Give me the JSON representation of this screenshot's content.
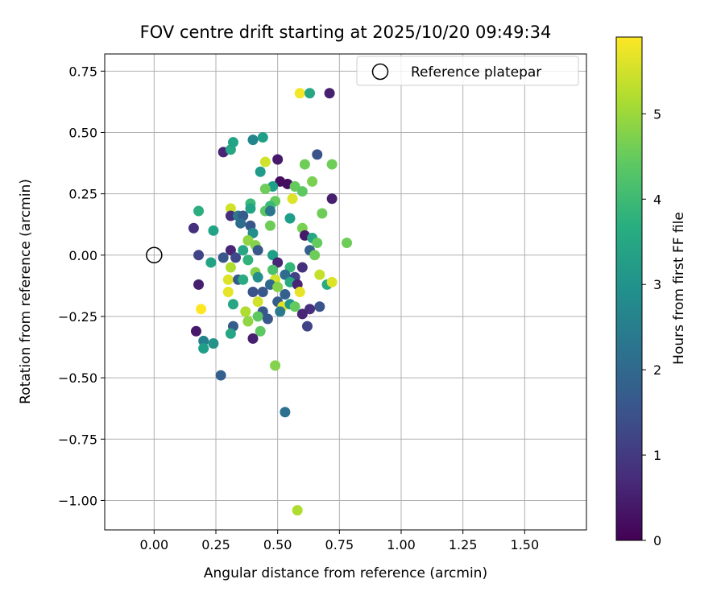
{
  "chart_data": {
    "type": "scatter",
    "title": "FOV centre drift starting at 2025/10/20 09:49:34",
    "xlabel": "Angular distance from reference (arcmin)",
    "ylabel": "Rotation from reference (arcmin)",
    "xlim": [
      -0.2,
      1.75
    ],
    "ylim": [
      -1.12,
      0.82
    ],
    "x_ticks": [
      0.0,
      0.25,
      0.5,
      0.75,
      1.0,
      1.25,
      1.5
    ],
    "x_tick_labels": [
      "0.00",
      "0.25",
      "0.50",
      "0.75",
      "1.00",
      "1.25",
      "1.50"
    ],
    "y_ticks": [
      0.75,
      0.5,
      0.25,
      0.0,
      -0.25,
      -0.5,
      -0.75,
      -1.0
    ],
    "y_tick_labels": [
      "0.75",
      "0.50",
      "0.25",
      "0.00",
      "−0.25",
      "−0.50",
      "−0.75",
      "−1.00"
    ],
    "grid": true,
    "legend": {
      "position": "top-right",
      "entries": [
        "Reference platepar"
      ]
    },
    "colorbar": {
      "label": "Hours from first FF file",
      "range": [
        0,
        5.9
      ],
      "ticks": [
        0,
        1,
        2,
        3,
        4,
        5
      ],
      "tick_labels": [
        "0",
        "1",
        "2",
        "3",
        "4",
        "5"
      ],
      "colormap": "viridis"
    },
    "reference_point": {
      "x": 0.0,
      "y": 0.0
    },
    "points": [
      {
        "x": 0.59,
        "y": 0.66,
        "h": 5.8
      },
      {
        "x": 0.63,
        "y": 0.66,
        "h": 3.5
      },
      {
        "x": 0.71,
        "y": 0.66,
        "h": 0.5
      },
      {
        "x": 0.28,
        "y": 0.42,
        "h": 0.6
      },
      {
        "x": 0.31,
        "y": 0.43,
        "h": 3.5
      },
      {
        "x": 0.32,
        "y": 0.46,
        "h": 3.4
      },
      {
        "x": 0.4,
        "y": 0.47,
        "h": 2.7
      },
      {
        "x": 0.44,
        "y": 0.48,
        "h": 3.3
      },
      {
        "x": 0.45,
        "y": 0.38,
        "h": 5.5
      },
      {
        "x": 0.5,
        "y": 0.39,
        "h": 0.4
      },
      {
        "x": 0.66,
        "y": 0.41,
        "h": 1.5
      },
      {
        "x": 0.61,
        "y": 0.37,
        "h": 4.6
      },
      {
        "x": 0.72,
        "y": 0.37,
        "h": 4.6
      },
      {
        "x": 0.43,
        "y": 0.34,
        "h": 3.2
      },
      {
        "x": 0.51,
        "y": 0.3,
        "h": 0.2
      },
      {
        "x": 0.54,
        "y": 0.29,
        "h": 0.2
      },
      {
        "x": 0.48,
        "y": 0.28,
        "h": 3.3
      },
      {
        "x": 0.57,
        "y": 0.28,
        "h": 4.5
      },
      {
        "x": 0.64,
        "y": 0.3,
        "h": 4.7
      },
      {
        "x": 0.45,
        "y": 0.27,
        "h": 4.6
      },
      {
        "x": 0.6,
        "y": 0.26,
        "h": 4.4
      },
      {
        "x": 0.72,
        "y": 0.23,
        "h": 0.5
      },
      {
        "x": 0.56,
        "y": 0.23,
        "h": 5.6
      },
      {
        "x": 0.49,
        "y": 0.22,
        "h": 4.5
      },
      {
        "x": 0.47,
        "y": 0.2,
        "h": 4.0
      },
      {
        "x": 0.39,
        "y": 0.21,
        "h": 4.0
      },
      {
        "x": 0.31,
        "y": 0.19,
        "h": 5.5
      },
      {
        "x": 0.18,
        "y": 0.18,
        "h": 3.7
      },
      {
        "x": 0.39,
        "y": 0.19,
        "h": 3.4
      },
      {
        "x": 0.45,
        "y": 0.18,
        "h": 4.4
      },
      {
        "x": 0.47,
        "y": 0.18,
        "h": 2.3
      },
      {
        "x": 0.68,
        "y": 0.17,
        "h": 4.6
      },
      {
        "x": 0.31,
        "y": 0.16,
        "h": 0.8
      },
      {
        "x": 0.34,
        "y": 0.16,
        "h": 2.4
      },
      {
        "x": 0.36,
        "y": 0.16,
        "h": 1.7
      },
      {
        "x": 0.55,
        "y": 0.15,
        "h": 3.3
      },
      {
        "x": 0.35,
        "y": 0.13,
        "h": 2.1
      },
      {
        "x": 0.39,
        "y": 0.12,
        "h": 1.6
      },
      {
        "x": 0.16,
        "y": 0.11,
        "h": 0.8
      },
      {
        "x": 0.47,
        "y": 0.12,
        "h": 4.6
      },
      {
        "x": 0.6,
        "y": 0.11,
        "h": 4.7
      },
      {
        "x": 0.24,
        "y": 0.1,
        "h": 3.4
      },
      {
        "x": 0.4,
        "y": 0.09,
        "h": 2.9
      },
      {
        "x": 0.61,
        "y": 0.08,
        "h": 0.4
      },
      {
        "x": 0.64,
        "y": 0.07,
        "h": 3.5
      },
      {
        "x": 0.38,
        "y": 0.06,
        "h": 4.9
      },
      {
        "x": 0.66,
        "y": 0.05,
        "h": 4.5
      },
      {
        "x": 0.78,
        "y": 0.05,
        "h": 4.6
      },
      {
        "x": 0.41,
        "y": 0.04,
        "h": 4.8
      },
      {
        "x": 0.63,
        "y": 0.02,
        "h": 1.8
      },
      {
        "x": 0.31,
        "y": 0.02,
        "h": 0.6
      },
      {
        "x": 0.36,
        "y": 0.02,
        "h": 3.5
      },
      {
        "x": 0.42,
        "y": 0.02,
        "h": 1.6
      },
      {
        "x": 0.65,
        "y": 0.0,
        "h": 4.6
      },
      {
        "x": 0.48,
        "y": 0.0,
        "h": 3.3
      },
      {
        "x": 0.18,
        "y": 0.0,
        "h": 1.2
      },
      {
        "x": 0.28,
        "y": -0.01,
        "h": 1.6
      },
      {
        "x": 0.33,
        "y": -0.01,
        "h": 1.3
      },
      {
        "x": 0.38,
        "y": -0.02,
        "h": 3.8
      },
      {
        "x": 0.23,
        "y": -0.03,
        "h": 3.4
      },
      {
        "x": 0.5,
        "y": -0.03,
        "h": 0.6
      },
      {
        "x": 0.31,
        "y": -0.05,
        "h": 5.2
      },
      {
        "x": 0.55,
        "y": -0.05,
        "h": 3.9
      },
      {
        "x": 0.6,
        "y": -0.05,
        "h": 0.8
      },
      {
        "x": 0.48,
        "y": -0.06,
        "h": 4.2
      },
      {
        "x": 0.41,
        "y": -0.07,
        "h": 4.8
      },
      {
        "x": 0.53,
        "y": -0.08,
        "h": 2.1
      },
      {
        "x": 0.42,
        "y": -0.09,
        "h": 2.9
      },
      {
        "x": 0.57,
        "y": -0.09,
        "h": 1.2
      },
      {
        "x": 0.67,
        "y": -0.08,
        "h": 5.4
      },
      {
        "x": 0.3,
        "y": -0.1,
        "h": 5.6
      },
      {
        "x": 0.34,
        "y": -0.1,
        "h": 1.6
      },
      {
        "x": 0.36,
        "y": -0.1,
        "h": 3.6
      },
      {
        "x": 0.49,
        "y": -0.1,
        "h": 5.5
      },
      {
        "x": 0.7,
        "y": -0.12,
        "h": 3.6
      },
      {
        "x": 0.72,
        "y": -0.11,
        "h": 5.6
      },
      {
        "x": 0.18,
        "y": -0.12,
        "h": 0.5
      },
      {
        "x": 0.47,
        "y": -0.12,
        "h": 2.0
      },
      {
        "x": 0.5,
        "y": -0.13,
        "h": 4.8
      },
      {
        "x": 0.55,
        "y": -0.11,
        "h": 3.6
      },
      {
        "x": 0.58,
        "y": -0.12,
        "h": 0.6
      },
      {
        "x": 0.59,
        "y": -0.15,
        "h": 5.7
      },
      {
        "x": 0.3,
        "y": -0.15,
        "h": 5.7
      },
      {
        "x": 0.4,
        "y": -0.15,
        "h": 1.5
      },
      {
        "x": 0.44,
        "y": -0.15,
        "h": 1.6
      },
      {
        "x": 0.53,
        "y": -0.16,
        "h": 1.8
      },
      {
        "x": 0.42,
        "y": -0.19,
        "h": 5.5
      },
      {
        "x": 0.5,
        "y": -0.19,
        "h": 1.7
      },
      {
        "x": 0.32,
        "y": -0.2,
        "h": 3.5
      },
      {
        "x": 0.52,
        "y": -0.21,
        "h": 5.6
      },
      {
        "x": 0.55,
        "y": -0.2,
        "h": 3.1
      },
      {
        "x": 0.57,
        "y": -0.21,
        "h": 4.5
      },
      {
        "x": 0.63,
        "y": -0.22,
        "h": 0.8
      },
      {
        "x": 0.67,
        "y": -0.21,
        "h": 1.5
      },
      {
        "x": 0.19,
        "y": -0.22,
        "h": 5.9
      },
      {
        "x": 0.37,
        "y": -0.23,
        "h": 5.2
      },
      {
        "x": 0.44,
        "y": -0.23,
        "h": 1.6
      },
      {
        "x": 0.51,
        "y": -0.23,
        "h": 2.4
      },
      {
        "x": 0.6,
        "y": -0.24,
        "h": 0.6
      },
      {
        "x": 0.42,
        "y": -0.25,
        "h": 4.4
      },
      {
        "x": 0.46,
        "y": -0.26,
        "h": 1.6
      },
      {
        "x": 0.38,
        "y": -0.27,
        "h": 4.9
      },
      {
        "x": 0.32,
        "y": -0.29,
        "h": 1.7
      },
      {
        "x": 0.62,
        "y": -0.29,
        "h": 1.2
      },
      {
        "x": 0.43,
        "y": -0.31,
        "h": 4.4
      },
      {
        "x": 0.17,
        "y": -0.31,
        "h": 0.4
      },
      {
        "x": 0.31,
        "y": -0.32,
        "h": 3.5
      },
      {
        "x": 0.2,
        "y": -0.35,
        "h": 2.6
      },
      {
        "x": 0.4,
        "y": -0.34,
        "h": 0.5
      },
      {
        "x": 0.24,
        "y": -0.36,
        "h": 3.0
      },
      {
        "x": 0.2,
        "y": -0.38,
        "h": 3.3
      },
      {
        "x": 0.49,
        "y": -0.45,
        "h": 4.8
      },
      {
        "x": 0.27,
        "y": -0.49,
        "h": 1.8
      },
      {
        "x": 0.53,
        "y": -0.64,
        "h": 2.2
      },
      {
        "x": 0.58,
        "y": -1.04,
        "h": 5.2
      }
    ]
  }
}
